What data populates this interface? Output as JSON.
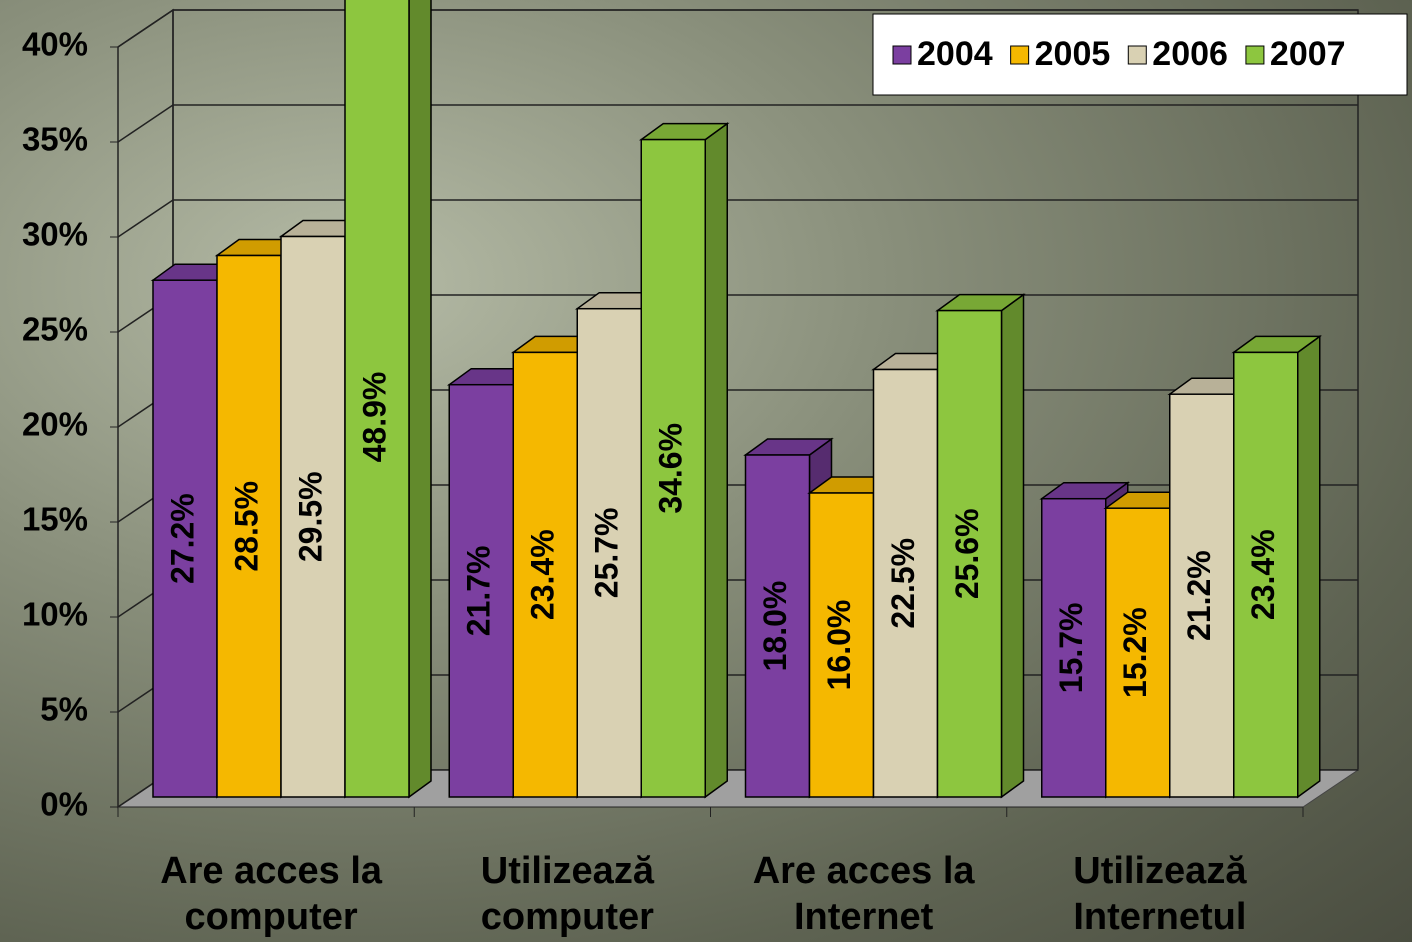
{
  "chart_data": {
    "type": "bar3d",
    "categories": [
      "Are acces la computer",
      "Utilizează computer",
      "Are acces la Internet",
      "Utilizează Internetul"
    ],
    "series": [
      {
        "name": "2004",
        "color": "#7b3fa0",
        "values": [
          27.2,
          21.7,
          18.0,
          15.7
        ],
        "value_labels": [
          "27.2%",
          "21.7%",
          "18.0%",
          "15.7%"
        ]
      },
      {
        "name": "2005",
        "color": "#f5b800",
        "values": [
          28.5,
          23.4,
          16.0,
          15.2
        ],
        "value_labels": [
          "28.5%",
          "23.4%",
          "16.0%",
          "15.2%"
        ]
      },
      {
        "name": "2006",
        "color": "#d9d1b3",
        "values": [
          29.5,
          25.7,
          22.5,
          21.2
        ],
        "value_labels": [
          "29.5%",
          "25.7%",
          "22.5%",
          "21.2%"
        ]
      },
      {
        "name": "2007",
        "color": "#8dc63f",
        "values": [
          48.9,
          34.6,
          25.6,
          23.4
        ],
        "value_labels": [
          "48.9%",
          "34.6%",
          "25.6%",
          "23.4%"
        ]
      }
    ],
    "ylim": [
      0,
      40
    ],
    "yticks": [
      {
        "value": 0,
        "label": "0%"
      },
      {
        "value": 5,
        "label": "5%"
      },
      {
        "value": 10,
        "label": "10%"
      },
      {
        "value": 15,
        "label": "15%"
      },
      {
        "value": 20,
        "label": "20%"
      },
      {
        "value": 25,
        "label": "25%"
      },
      {
        "value": 30,
        "label": "30%"
      },
      {
        "value": 35,
        "label": "35%"
      },
      {
        "value": 40,
        "label": "40%"
      }
    ],
    "grid": true,
    "legend": "top-right"
  }
}
